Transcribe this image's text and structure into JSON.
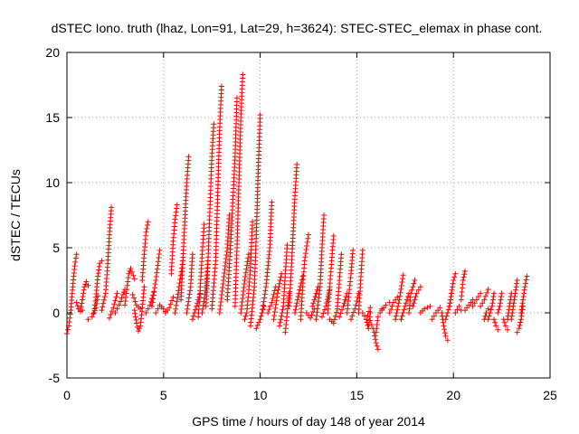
{
  "chart_data": {
    "type": "scatter",
    "title": "dSTEC Iono. truth (lhaz, Lon=91, Lat=29, h=3624): STEC-STEC_elemax in phase cont.",
    "xlabel": "GPS time / hours of day 148 of year 2014",
    "ylabel": "dSTEC  / TECUs",
    "xlim": [
      0,
      25
    ],
    "ylim": [
      -5,
      20
    ],
    "xticks": [
      "0",
      "5",
      "10",
      "15",
      "20",
      "25"
    ],
    "yticks": [
      "-5",
      "0",
      "5",
      "10",
      "15",
      "20"
    ],
    "grid": true,
    "marker": "+",
    "series": [
      {
        "color": "#ff0000",
        "arcs": [
          {
            "x": [
              0.0,
              0.1,
              0.2,
              0.3,
              0.4,
              0.5
            ],
            "y": [
              -1.6,
              -1.0,
              0.2,
              2.0,
              3.6,
              4.5
            ]
          },
          {
            "x": [
              0.5,
              0.6,
              0.7,
              0.8
            ],
            "y": [
              0.8,
              0.3,
              0.1,
              0.2
            ]
          },
          {
            "x": [
              0.7,
              0.8,
              0.9,
              1.0,
              1.1
            ],
            "y": [
              0.2,
              1.0,
              2.0,
              2.4,
              2.1
            ]
          },
          {
            "x": [
              1.1,
              1.3,
              1.5,
              1.6
            ],
            "y": [
              -0.5,
              -0.3,
              0.4,
              1.3
            ]
          },
          {
            "x": [
              1.4,
              1.5,
              1.6,
              1.7,
              1.8
            ],
            "y": [
              0.0,
              1.2,
              2.8,
              3.8,
              4.0
            ]
          },
          {
            "x": [
              1.8,
              2.0,
              2.1,
              2.2,
              2.3
            ],
            "y": [
              0.2,
              1.5,
              3.5,
              6.0,
              8.1
            ]
          },
          {
            "x": [
              2.2,
              2.4,
              2.6
            ],
            "y": [
              -0.4,
              0.4,
              1.5
            ]
          },
          {
            "x": [
              2.5,
              2.7,
              2.9,
              3.0
            ],
            "y": [
              0.0,
              0.6,
              1.4,
              1.8
            ]
          },
          {
            "x": [
              3.0,
              3.1,
              3.2,
              3.3,
              3.5
            ],
            "y": [
              0.6,
              1.8,
              3.0,
              3.4,
              2.6
            ]
          },
          {
            "x": [
              3.4,
              3.6,
              3.8
            ],
            "y": [
              1.4,
              0.6,
              0.3
            ]
          },
          {
            "x": [
              3.5,
              3.6,
              3.7,
              3.8,
              3.9,
              4.0
            ],
            "y": [
              0.2,
              -0.8,
              -1.4,
              -1.0,
              0.4,
              2.0
            ]
          },
          {
            "x": [
              3.9,
              4.0,
              4.1,
              4.2
            ],
            "y": [
              2.5,
              4.5,
              6.2,
              7.0
            ]
          },
          {
            "x": [
              4.1,
              4.3,
              4.5
            ],
            "y": [
              0.0,
              0.6,
              1.6
            ]
          },
          {
            "x": [
              4.4,
              4.6,
              4.8
            ],
            "y": [
              0.5,
              2.5,
              4.8
            ]
          },
          {
            "x": [
              4.6,
              4.8,
              5.0,
              5.1
            ],
            "y": [
              0.0,
              0.6,
              0.3,
              0.1
            ]
          },
          {
            "x": [
              5.1,
              5.3,
              5.5
            ],
            "y": [
              0.0,
              0.4,
              1.2
            ]
          },
          {
            "x": [
              5.4,
              5.5,
              5.6,
              5.7
            ],
            "y": [
              3.0,
              5.5,
              7.2,
              8.3
            ]
          },
          {
            "x": [
              5.6,
              5.8,
              6.0
            ],
            "y": [
              0.0,
              2.0,
              4.0
            ]
          },
          {
            "x": [
              5.9,
              6.0,
              6.1,
              6.2,
              6.3
            ],
            "y": [
              1.0,
              4.0,
              7.0,
              10.0,
              12.0
            ]
          },
          {
            "x": [
              6.2,
              6.4,
              6.5
            ],
            "y": [
              0.0,
              2.0,
              4.5
            ]
          },
          {
            "x": [
              6.5,
              6.7,
              6.9
            ],
            "y": [
              -0.5,
              0.5,
              1.5
            ]
          },
          {
            "x": [
              6.8,
              6.9,
              7.0,
              7.1
            ],
            "y": [
              -0.3,
              2.0,
              4.5,
              6.8
            ]
          },
          {
            "x": [
              7.0,
              7.2,
              7.3
            ],
            "y": [
              0.0,
              2.0,
              4.0
            ]
          },
          {
            "x": [
              7.2,
              7.3,
              7.4,
              7.5,
              7.6
            ],
            "y": [
              0.5,
              4.0,
              8.0,
              12.0,
              14.5
            ]
          },
          {
            "x": [
              7.5,
              7.7,
              7.8,
              7.9,
              8.0
            ],
            "y": [
              0.3,
              4.0,
              9.0,
              14.0,
              17.4
            ]
          },
          {
            "x": [
              7.9,
              8.1,
              8.3,
              8.4
            ],
            "y": [
              0.0,
              2.5,
              5.0,
              7.5
            ]
          },
          {
            "x": [
              8.3,
              8.5,
              8.7,
              8.8
            ],
            "y": [
              1.0,
              6.0,
              12.0,
              16.5
            ]
          },
          {
            "x": [
              8.7,
              8.8,
              8.9,
              9.0,
              9.1
            ],
            "y": [
              0.5,
              5.0,
              10.0,
              15.0,
              18.3
            ]
          },
          {
            "x": [
              9.0,
              9.2,
              9.4
            ],
            "y": [
              0.0,
              2.5,
              4.5
            ]
          },
          {
            "x": [
              9.2,
              9.3,
              9.4,
              9.5,
              9.6
            ],
            "y": [
              -0.5,
              0.0,
              1.5,
              3.5,
              7.0
            ]
          },
          {
            "x": [
              9.5,
              9.7,
              9.8,
              9.9,
              10.0
            ],
            "y": [
              -1.0,
              2.0,
              6.0,
              11.0,
              15.2
            ]
          },
          {
            "x": [
              9.8,
              10.0,
              10.2
            ],
            "y": [
              -1.2,
              -0.5,
              0.5
            ]
          },
          {
            "x": [
              10.1,
              10.3,
              10.5,
              10.6
            ],
            "y": [
              0.0,
              2.0,
              5.0,
              8.5
            ]
          },
          {
            "x": [
              10.4,
              10.6,
              10.8
            ],
            "y": [
              0.0,
              0.8,
              2.0
            ]
          },
          {
            "x": [
              10.7,
              10.9,
              11.1
            ],
            "y": [
              -0.5,
              1.5,
              3.0
            ]
          },
          {
            "x": [
              11.0,
              11.2,
              11.3,
              11.4
            ],
            "y": [
              -1.0,
              0.5,
              3.0,
              5.2
            ]
          },
          {
            "x": [
              11.3,
              11.4,
              11.5
            ],
            "y": [
              -1.5,
              0.0,
              1.5
            ]
          },
          {
            "x": [
              11.5,
              11.6,
              11.7,
              11.8,
              11.9
            ],
            "y": [
              0.5,
              3.0,
              6.0,
              9.0,
              11.4
            ]
          },
          {
            "x": [
              11.8,
              12.0,
              12.2
            ],
            "y": [
              0.0,
              1.5,
              2.8
            ]
          },
          {
            "x": [
              12.1,
              12.2,
              12.3,
              12.5
            ],
            "y": [
              -0.5,
              2.0,
              4.0,
              6.0
            ]
          },
          {
            "x": [
              12.4,
              12.6,
              12.8
            ],
            "y": [
              0.0,
              -0.4,
              0.3
            ]
          },
          {
            "x": [
              12.7,
              12.9,
              13.0
            ],
            "y": [
              0.5,
              1.5,
              2.0
            ]
          },
          {
            "x": [
              12.9,
              13.1,
              13.2,
              13.3
            ],
            "y": [
              -0.5,
              2.0,
              5.0,
              7.5
            ]
          },
          {
            "x": [
              13.2,
              13.4,
              13.6
            ],
            "y": [
              -0.3,
              0.5,
              1.8
            ]
          },
          {
            "x": [
              13.5,
              13.6,
              13.7,
              13.8
            ],
            "y": [
              0.0,
              2.0,
              4.0,
              5.9
            ]
          },
          {
            "x": [
              13.6,
              13.8,
              14.0
            ],
            "y": [
              -0.5,
              -0.8,
              0.3
            ]
          },
          {
            "x": [
              14.0,
              14.1,
              14.2
            ],
            "y": [
              0.5,
              2.5,
              4.5
            ]
          },
          {
            "x": [
              14.1,
              14.3,
              14.5
            ],
            "y": [
              -0.3,
              0.5,
              1.5
            ]
          },
          {
            "x": [
              14.5,
              14.6,
              14.7,
              14.8
            ],
            "y": [
              0.0,
              1.5,
              3.0,
              4.8
            ]
          },
          {
            "x": [
              14.7,
              14.9,
              15.1
            ],
            "y": [
              -0.5,
              0.3,
              1.5
            ]
          },
          {
            "x": [
              15.1,
              15.2,
              15.3
            ],
            "y": [
              0.0,
              2.5,
              4.8
            ]
          },
          {
            "x": [
              15.3,
              15.5,
              15.7
            ],
            "y": [
              0.0,
              -0.5,
              0.4
            ]
          },
          {
            "x": [
              15.5,
              15.6,
              15.7
            ],
            "y": [
              -0.5,
              -1.2,
              0.0
            ]
          },
          {
            "x": [
              15.7,
              15.9,
              16.0,
              16.1
            ],
            "y": [
              -0.6,
              -1.5,
              -2.3,
              -2.8
            ]
          },
          {
            "x": [
              16.0,
              16.1,
              16.3
            ],
            "y": [
              -1.5,
              -0.3,
              0.3
            ]
          },
          {
            "x": [
              16.3,
              16.5,
              16.7
            ],
            "y": [
              0.2,
              0.6,
              0.8
            ]
          },
          {
            "x": [
              16.7,
              16.9,
              17.1
            ],
            "y": [
              0.0,
              0.8,
              1.2
            ]
          },
          {
            "x": [
              17.0,
              17.2,
              17.4
            ],
            "y": [
              -0.5,
              1.0,
              2.9
            ]
          },
          {
            "x": [
              17.3,
              17.5,
              17.7
            ],
            "y": [
              -0.5,
              0.5,
              1.5
            ]
          },
          {
            "x": [
              17.7,
              17.8,
              18.0
            ],
            "y": [
              0.0,
              1.5,
              2.5
            ]
          },
          {
            "x": [
              17.9,
              18.1,
              18.3
            ],
            "y": [
              0.5,
              1.5,
              2.0
            ]
          },
          {
            "x": [
              18.3,
              18.5,
              18.8
            ],
            "y": [
              0.0,
              0.3,
              0.5
            ]
          },
          {
            "x": [
              18.9,
              19.1,
              19.3
            ],
            "y": [
              -0.5,
              0.0,
              0.4
            ]
          },
          {
            "x": [
              19.4,
              19.5,
              19.6,
              19.7
            ],
            "y": [
              0.0,
              -1.0,
              -1.8,
              -2.1
            ]
          },
          {
            "x": [
              19.6,
              19.8,
              19.9
            ],
            "y": [
              -0.5,
              0.5,
              1.5
            ]
          },
          {
            "x": [
              19.8,
              19.9,
              20.0,
              20.1
            ],
            "y": [
              0.5,
              1.5,
              2.5,
              3.0
            ]
          },
          {
            "x": [
              20.1,
              20.3,
              20.4
            ],
            "y": [
              0.0,
              0.5,
              0.2
            ]
          },
          {
            "x": [
              20.4,
              20.5,
              20.6
            ],
            "y": [
              1.0,
              2.5,
              3.2
            ]
          },
          {
            "x": [
              20.6,
              20.8,
              21.0
            ],
            "y": [
              0.2,
              0.6,
              1.0
            ]
          },
          {
            "x": [
              21.0,
              21.2,
              21.4
            ],
            "y": [
              0.5,
              1.0,
              1.5
            ]
          },
          {
            "x": [
              21.4,
              21.6,
              21.8
            ],
            "y": [
              0.5,
              1.0,
              1.8
            ]
          },
          {
            "x": [
              21.6,
              21.7,
              21.8
            ],
            "y": [
              -0.5,
              0.0,
              0.3
            ]
          },
          {
            "x": [
              21.8,
              22.0,
              22.1
            ],
            "y": [
              -0.5,
              0.5,
              1.5
            ]
          },
          {
            "x": [
              22.1,
              22.2,
              22.3
            ],
            "y": [
              -0.5,
              -1.0,
              -1.3
            ]
          },
          {
            "x": [
              22.3,
              22.4,
              22.5
            ],
            "y": [
              0.0,
              0.5,
              1.5
            ]
          },
          {
            "x": [
              22.6,
              22.7,
              22.8
            ],
            "y": [
              -0.5,
              -1.0,
              -1.3
            ]
          },
          {
            "x": [
              22.8,
              22.9,
              23.0
            ],
            "y": [
              -0.5,
              0.5,
              1.5
            ]
          },
          {
            "x": [
              23.0,
              23.1,
              23.2,
              23.3
            ],
            "y": [
              -0.5,
              0.5,
              1.5,
              2.5
            ]
          },
          {
            "x": [
              23.3,
              23.4,
              23.5,
              23.6
            ],
            "y": [
              -1.5,
              -1.2,
              -0.5,
              0.5
            ]
          },
          {
            "x": [
              23.5,
              23.6,
              23.7,
              23.8
            ],
            "y": [
              0.0,
              1.0,
              2.0,
              2.8
            ]
          }
        ]
      }
    ]
  }
}
